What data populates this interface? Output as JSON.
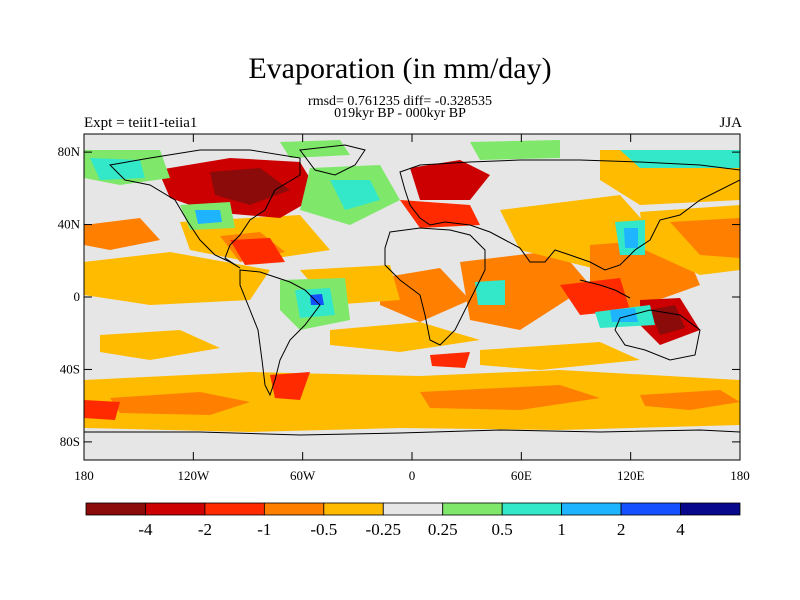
{
  "title": "Evaporation (in mm/day)",
  "stats_line": "rmsd= 0.761235 diff= -0.328535",
  "period_line": "019kyr BP - 000kyr BP",
  "experiment_label": "Expt = teiit1-teiia1",
  "season_label": "JJA",
  "axes": {
    "lat_labels": [
      "80N",
      "40N",
      "0",
      "40S",
      "80S"
    ],
    "lon_labels": [
      "180",
      "120W",
      "60W",
      "0",
      "60E",
      "120E",
      "180"
    ]
  },
  "colorbar": {
    "colors": [
      "#8b0a0a",
      "#cc0000",
      "#ff2a00",
      "#ff7f00",
      "#ffbb00",
      "#e6e6e6",
      "#7fe86a",
      "#33e8c8",
      "#1eb4ff",
      "#1450ff",
      "#08088c"
    ],
    "labels": [
      "-4",
      "-2",
      "-1",
      "-0.5",
      "-0.25",
      "0.25",
      "0.5",
      "1",
      "2",
      "4"
    ]
  },
  "colors": {
    "strong_negative": "#8b0a0a",
    "neutral": "#e6e6e6",
    "strong_positive": "#08088c"
  }
}
